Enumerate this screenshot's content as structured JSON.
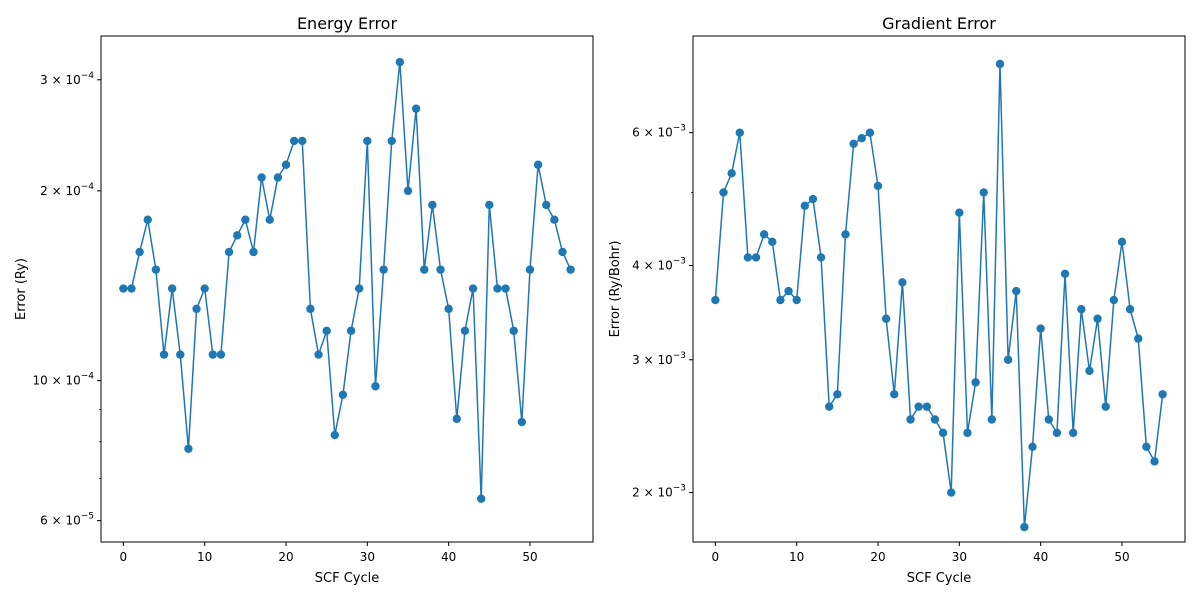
{
  "chart_data": [
    {
      "type": "line",
      "title": "Energy Error",
      "xlabel": "SCF Cycle",
      "ylabel": "Error (Ry)",
      "yscale": "log",
      "xlim": [
        -2.75,
        57.75
      ],
      "ylim": [
        5.55e-05,
        0.000352
      ],
      "xticks": [
        0,
        10,
        20,
        30,
        40,
        50
      ],
      "xtick_labels": [
        "0",
        "10",
        "20",
        "30",
        "40",
        "50"
      ],
      "yticks": [
        6e-05,
        0.0001,
        0.0002,
        0.0003
      ],
      "ytick_labels": [
        {
          "mantissa": "6",
          "exponent": "−5"
        },
        {
          "mantissa": "10",
          "exponent": "−4"
        },
        {
          "mantissa": "2",
          "exponent": "−4"
        },
        {
          "mantissa": "3",
          "exponent": "−4"
        }
      ],
      "yminor_ticks": [
        7e-05,
        8e-05,
        9e-05
      ],
      "grid": false,
      "color": "#1f77b4",
      "marker": "circle",
      "x": [
        0,
        1,
        2,
        3,
        4,
        5,
        6,
        7,
        8,
        9,
        10,
        11,
        12,
        13,
        14,
        15,
        16,
        17,
        18,
        19,
        20,
        21,
        22,
        23,
        24,
        25,
        26,
        27,
        28,
        29,
        30,
        31,
        32,
        33,
        34,
        35,
        36,
        37,
        38,
        39,
        40,
        41,
        42,
        43,
        44,
        45,
        46,
        47,
        48,
        49,
        50,
        51,
        52,
        53,
        54,
        55
      ],
      "y": [
        0.00014,
        0.00014,
        0.00016,
        0.00018,
        0.00015,
        0.00011,
        0.00014,
        0.00011,
        7.8e-05,
        0.00013,
        0.00014,
        0.00011,
        0.00011,
        0.00016,
        0.00017,
        0.00018,
        0.00016,
        0.00021,
        0.00018,
        0.00021,
        0.00022,
        0.00024,
        0.00024,
        0.00013,
        0.00011,
        0.00012,
        8.2e-05,
        9.5e-05,
        0.00012,
        0.00014,
        0.00024,
        9.8e-05,
        0.00015,
        0.00024,
        0.00032,
        0.0002,
        0.00027,
        0.00015,
        0.00019,
        0.00015,
        0.00013,
        8.7e-05,
        0.00012,
        0.00014,
        6.5e-05,
        0.00019,
        0.00014,
        0.00014,
        0.00012,
        8.6e-05,
        0.00015,
        0.00022,
        0.00019,
        0.00018,
        0.00016,
        0.00015
      ]
    },
    {
      "type": "line",
      "title": "Gradient Error",
      "xlabel": "SCF Cycle",
      "ylabel": "Error (Ry/Bohr)",
      "yscale": "log",
      "xlim": [
        -2.75,
        57.75
      ],
      "ylim": [
        0.00172,
        0.00806
      ],
      "xticks": [
        0,
        10,
        20,
        30,
        40,
        50
      ],
      "xtick_labels": [
        "0",
        "10",
        "20",
        "30",
        "40",
        "50"
      ],
      "yticks": [
        0.002,
        0.003,
        0.004,
        0.006
      ],
      "ytick_labels": [
        {
          "mantissa": "2",
          "exponent": "−3"
        },
        {
          "mantissa": "3",
          "exponent": "−3"
        },
        {
          "mantissa": "4",
          "exponent": "−3"
        },
        {
          "mantissa": "6",
          "exponent": "−3"
        }
      ],
      "yminor_ticks": [
        0.005
      ],
      "grid": false,
      "color": "#1f77b4",
      "marker": "circle",
      "x": [
        0,
        1,
        2,
        3,
        4,
        5,
        6,
        7,
        8,
        9,
        10,
        11,
        12,
        13,
        14,
        15,
        16,
        17,
        18,
        19,
        20,
        21,
        22,
        23,
        24,
        25,
        26,
        27,
        28,
        29,
        30,
        31,
        32,
        33,
        34,
        35,
        36,
        37,
        38,
        39,
        40,
        41,
        42,
        43,
        44,
        45,
        46,
        47,
        48,
        49,
        50,
        51,
        52,
        53,
        54,
        55
      ],
      "y": [
        0.0036,
        0.005,
        0.0053,
        0.006,
        0.0041,
        0.0041,
        0.0044,
        0.0043,
        0.0036,
        0.0037,
        0.0036,
        0.0048,
        0.0049,
        0.0041,
        0.0026,
        0.0027,
        0.0044,
        0.0058,
        0.0059,
        0.006,
        0.0051,
        0.0034,
        0.0027,
        0.0038,
        0.0025,
        0.0026,
        0.0026,
        0.0025,
        0.0024,
        0.002,
        0.0047,
        0.0024,
        0.0028,
        0.005,
        0.0025,
        0.0074,
        0.003,
        0.0037,
        0.0018,
        0.0023,
        0.0033,
        0.0025,
        0.0024,
        0.0039,
        0.0024,
        0.0035,
        0.0029,
        0.0034,
        0.0026,
        0.0036,
        0.0043,
        0.0035,
        0.0032,
        0.0023,
        0.0022,
        0.0027
      ]
    }
  ]
}
